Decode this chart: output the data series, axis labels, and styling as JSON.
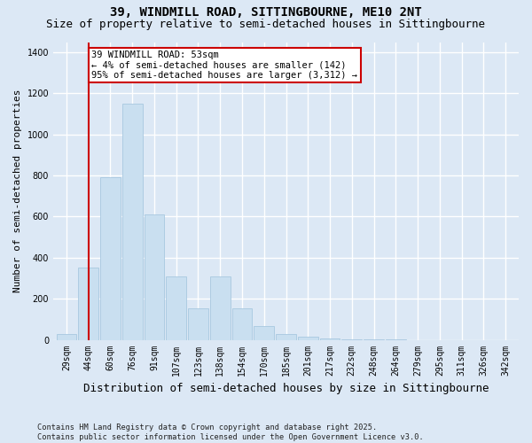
{
  "title": "39, WINDMILL ROAD, SITTINGBOURNE, ME10 2NT",
  "subtitle": "Size of property relative to semi-detached houses in Sittingbourne",
  "xlabel": "Distribution of semi-detached houses by size in Sittingbourne",
  "ylabel": "Number of semi-detached properties",
  "categories": [
    "29sqm",
    "44sqm",
    "60sqm",
    "76sqm",
    "91sqm",
    "107sqm",
    "123sqm",
    "138sqm",
    "154sqm",
    "170sqm",
    "185sqm",
    "201sqm",
    "217sqm",
    "232sqm",
    "248sqm",
    "264sqm",
    "279sqm",
    "295sqm",
    "311sqm",
    "326sqm",
    "342sqm"
  ],
  "values": [
    30,
    350,
    790,
    1150,
    610,
    310,
    155,
    310,
    155,
    65,
    30,
    15,
    5,
    3,
    1,
    1,
    0,
    0,
    0,
    0,
    0
  ],
  "bar_color": "#c9dff0",
  "bar_edge_color": "#a8c8e0",
  "marker_index": 1,
  "marker_color": "#cc0000",
  "annotation_text": "39 WINDMILL ROAD: 53sqm\n← 4% of semi-detached houses are smaller (142)\n95% of semi-detached houses are larger (3,312) →",
  "annotation_box_color": "#ffffff",
  "annotation_box_edge": "#cc0000",
  "ylim": [
    0,
    1450
  ],
  "yticks": [
    0,
    200,
    400,
    600,
    800,
    1000,
    1200,
    1400
  ],
  "footnote": "Contains HM Land Registry data © Crown copyright and database right 2025.\nContains public sector information licensed under the Open Government Licence v3.0.",
  "bg_color": "#dce8f5",
  "plot_bg_color": "#dce8f5",
  "grid_color": "#ffffff",
  "title_fontsize": 10,
  "subtitle_fontsize": 9,
  "tick_fontsize": 7,
  "ylabel_fontsize": 8,
  "xlabel_fontsize": 9
}
